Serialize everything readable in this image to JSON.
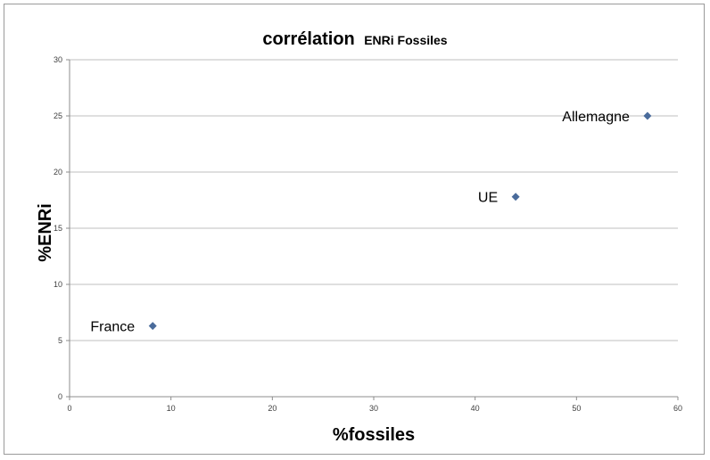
{
  "chart_data": {
    "type": "scatter",
    "title_main": "corrélation",
    "title_sub": "ENRi Fossiles",
    "xlabel": "%fossiles",
    "ylabel": "%ENRi",
    "xlim": [
      0,
      60
    ],
    "ylim": [
      0,
      30
    ],
    "x_ticks": [
      0,
      10,
      20,
      30,
      40,
      50,
      60
    ],
    "y_ticks": [
      0,
      5,
      10,
      15,
      20,
      25,
      30
    ],
    "grid": "horizontal",
    "legend": "none",
    "points": [
      {
        "label": "France",
        "x": 8.2,
        "y": 6.3
      },
      {
        "label": "UE",
        "x": 44.0,
        "y": 17.8
      },
      {
        "label": "Allemagne",
        "x": 57.0,
        "y": 25.0
      }
    ],
    "colors": {
      "marker": "#4a6b9b",
      "grid": "#bfbfbf",
      "axis": "#8c8c8c",
      "text": "#000000",
      "tick_text": "#404040"
    }
  }
}
